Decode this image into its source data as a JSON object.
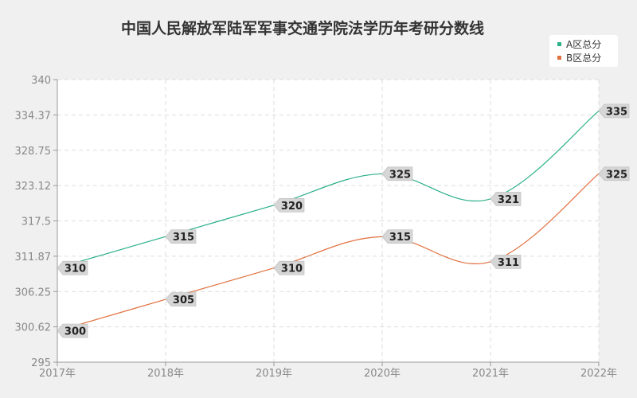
{
  "chart_data": {
    "type": "line",
    "title": "中国人民解放军陆军军事交通学院法学历年考研分数线",
    "categories": [
      "2017年",
      "2018年",
      "2019年",
      "2020年",
      "2021年",
      "2022年"
    ],
    "y_ticks": [
      "295",
      "300.62",
      "306.25",
      "311.87",
      "317.5",
      "323.12",
      "328.75",
      "334.37",
      "340"
    ],
    "ylim": [
      295,
      340
    ],
    "grid": true,
    "legend_position": "top-right",
    "series": [
      {
        "name": "A区总分",
        "values": [
          310,
          315,
          320,
          325,
          321,
          335
        ],
        "color": "#2bb08a"
      },
      {
        "name": "B区总分",
        "values": [
          300,
          305,
          310,
          315,
          311,
          325
        ],
        "color": "#e0703e"
      }
    ]
  }
}
